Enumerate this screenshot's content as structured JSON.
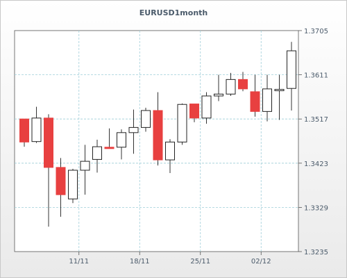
{
  "chart_data": {
    "type": "candlestick",
    "title": "EURUSD1month",
    "xlabel": "",
    "ylabel": "",
    "ylim": [
      1.3235,
      1.3705
    ],
    "y_ticks": [
      "1.3705",
      "1.3611",
      "1.3517",
      "1.3423",
      "1.3329",
      "1.3235"
    ],
    "y_tick_values": [
      1.3705,
      1.3611,
      1.3517,
      1.3423,
      1.3329,
      1.3235
    ],
    "x_ticks": [
      {
        "label": "11/11",
        "index": 4.5
      },
      {
        "label": "18/11",
        "index": 9.5
      },
      {
        "label": "25/11",
        "index": 14.5
      },
      {
        "label": "02/12",
        "index": 19.5
      }
    ],
    "grid": true,
    "colors": {
      "up": "#ffffff",
      "down": "#e84040",
      "wick": "#333333",
      "grid": "#9ecdd8"
    },
    "candles": [
      {
        "open": 1.3517,
        "high": 1.3517,
        "low": 1.3458,
        "close": 1.3468
      },
      {
        "open": 1.3469,
        "high": 1.3543,
        "low": 1.3466,
        "close": 1.3519
      },
      {
        "open": 1.3519,
        "high": 1.3527,
        "low": 1.3288,
        "close": 1.3414
      },
      {
        "open": 1.3414,
        "high": 1.3434,
        "low": 1.3309,
        "close": 1.3356
      },
      {
        "open": 1.3347,
        "high": 1.3411,
        "low": 1.3338,
        "close": 1.3408
      },
      {
        "open": 1.3408,
        "high": 1.3462,
        "low": 1.3356,
        "close": 1.3427
      },
      {
        "open": 1.3431,
        "high": 1.3473,
        "low": 1.3403,
        "close": 1.3458
      },
      {
        "open": 1.3457,
        "high": 1.3497,
        "low": 1.3456,
        "close": 1.3454
      },
      {
        "open": 1.3457,
        "high": 1.3495,
        "low": 1.3431,
        "close": 1.3488
      },
      {
        "open": 1.3488,
        "high": 1.3537,
        "low": 1.3443,
        "close": 1.3499
      },
      {
        "open": 1.3499,
        "high": 1.3541,
        "low": 1.349,
        "close": 1.3535
      },
      {
        "open": 1.3535,
        "high": 1.3574,
        "low": 1.3418,
        "close": 1.343
      },
      {
        "open": 1.343,
        "high": 1.3474,
        "low": 1.3402,
        "close": 1.3468
      },
      {
        "open": 1.3468,
        "high": 1.355,
        "low": 1.3462,
        "close": 1.3548
      },
      {
        "open": 1.3549,
        "high": 1.3549,
        "low": 1.351,
        "close": 1.3519
      },
      {
        "open": 1.3519,
        "high": 1.3574,
        "low": 1.3507,
        "close": 1.3566
      },
      {
        "open": 1.3566,
        "high": 1.3611,
        "low": 1.3555,
        "close": 1.357
      },
      {
        "open": 1.357,
        "high": 1.3615,
        "low": 1.3566,
        "close": 1.3601
      },
      {
        "open": 1.3601,
        "high": 1.3617,
        "low": 1.3576,
        "close": 1.3581
      },
      {
        "open": 1.3575,
        "high": 1.3611,
        "low": 1.3522,
        "close": 1.3533
      },
      {
        "open": 1.3533,
        "high": 1.3611,
        "low": 1.3512,
        "close": 1.3581
      },
      {
        "open": 1.358,
        "high": 1.3611,
        "low": 1.3515,
        "close": 1.358
      },
      {
        "open": 1.3582,
        "high": 1.3681,
        "low": 1.3535,
        "close": 1.3662
      }
    ]
  }
}
